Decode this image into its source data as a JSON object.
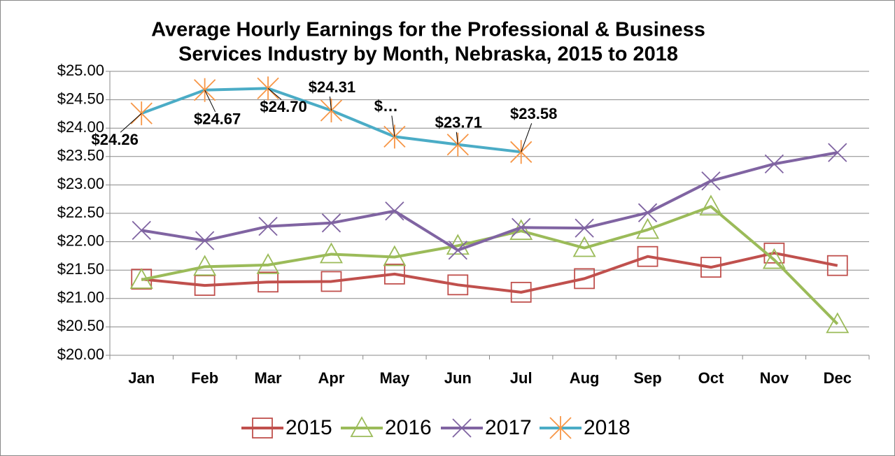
{
  "chart_data": {
    "type": "line",
    "title": [
      "Average Hourly Earnings for the Professional & Business",
      "Services Industry by Month, Nebraska, 2015 to 2018"
    ],
    "categories": [
      "Jan",
      "Feb",
      "Mar",
      "Apr",
      "May",
      "Jun",
      "Jul",
      "Aug",
      "Sep",
      "Oct",
      "Nov",
      "Dec"
    ],
    "series": [
      {
        "name": "2015",
        "color": "#c0504d",
        "marker": "square",
        "marker_color": "#c0504d",
        "values": [
          21.34,
          21.23,
          21.29,
          21.3,
          21.43,
          21.24,
          21.11,
          21.35,
          21.74,
          21.55,
          21.8,
          21.58
        ]
      },
      {
        "name": "2016",
        "color": "#9bbb59",
        "marker": "triangle",
        "marker_color": "#9bbb59",
        "values": [
          21.33,
          21.56,
          21.59,
          21.78,
          21.73,
          21.93,
          22.19,
          21.89,
          22.21,
          22.62,
          21.68,
          20.55
        ]
      },
      {
        "name": "2017",
        "color": "#8064a2",
        "marker": "x",
        "marker_color": "#8064a2",
        "values": [
          22.2,
          22.02,
          22.27,
          22.33,
          22.54,
          21.85,
          22.25,
          22.24,
          22.51,
          23.07,
          23.37,
          23.57
        ]
      },
      {
        "name": "2018",
        "color": "#4bacc6",
        "marker": "star",
        "marker_color": "#f79646",
        "values": [
          24.26,
          24.67,
          24.7,
          24.31,
          23.85,
          23.71,
          23.58,
          null,
          null,
          null,
          null,
          null
        ],
        "value_labels": [
          "$24.26",
          "$24.67",
          "$24.70",
          "$24.31",
          "$…",
          "$23.71",
          "$23.58",
          null,
          null,
          null,
          null,
          null
        ]
      }
    ],
    "ylim": [
      20,
      25
    ],
    "yticks": [
      {
        "value": 20,
        "label": "$20.00"
      },
      {
        "value": 20.5,
        "label": "$20.50"
      },
      {
        "value": 21,
        "label": "$21.00"
      },
      {
        "value": 21.5,
        "label": "$21.50"
      },
      {
        "value": 22,
        "label": "$22.00"
      },
      {
        "value": 22.5,
        "label": "$22.50"
      },
      {
        "value": 23,
        "label": "$23.00"
      },
      {
        "value": 23.5,
        "label": "$23.50"
      },
      {
        "value": 24,
        "label": "$24.00"
      },
      {
        "value": 24.5,
        "label": "$24.50"
      },
      {
        "value": 25,
        "label": "$25.00"
      }
    ],
    "grid": true,
    "legend": "bottom"
  }
}
